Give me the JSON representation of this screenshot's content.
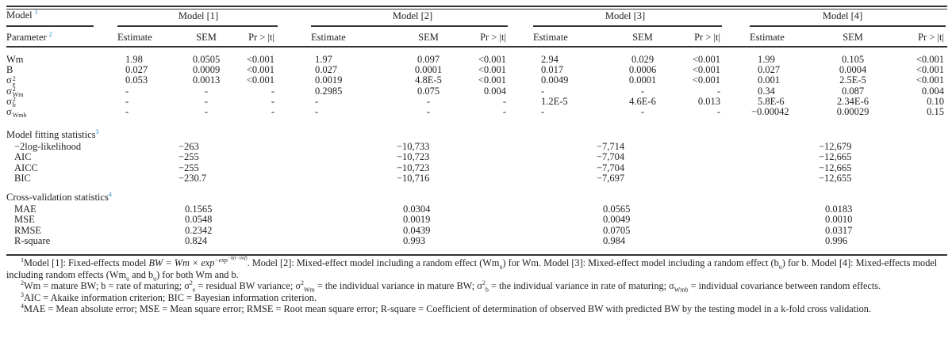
{
  "header": {
    "model_label": "Model",
    "model_ref": "1",
    "parameter_label": "Parameter",
    "parameter_ref": "2",
    "models": [
      "Model [1]",
      "Model [2]",
      "Model [3]",
      "Model [4]"
    ],
    "subcols": [
      "Estimate",
      "SEM",
      "Pr > |t|"
    ]
  },
  "parameters": [
    {
      "name": "Wm",
      "sup": "",
      "sub": "",
      "values": [
        [
          "1.98",
          "0.0505",
          "<0.001"
        ],
        [
          "1.97",
          "0.097",
          "<0.001"
        ],
        [
          "2.94",
          "0.029",
          "<0.001"
        ],
        [
          "1.99",
          "0.105",
          "<0.001"
        ]
      ]
    },
    {
      "name": "B",
      "sup": "",
      "sub": "",
      "values": [
        [
          "0.027",
          "0.0009",
          "<0.001"
        ],
        [
          "0.027",
          "0.0001",
          "<0.001"
        ],
        [
          "0.017",
          "0.0006",
          "<0.001"
        ],
        [
          "0.027",
          "0.0004",
          "<0.001"
        ]
      ]
    },
    {
      "name": "σ",
      "sup": "2",
      "sub": "e",
      "values": [
        [
          "0.053",
          "0.0013",
          "<0.001"
        ],
        [
          "0.0019",
          "4.8E-5",
          "<0.001"
        ],
        [
          "0.0049",
          "0.0001",
          "<0.001"
        ],
        [
          "0.001",
          "2.5E-5",
          "<0.001"
        ]
      ]
    },
    {
      "name": "σ",
      "sup": "2",
      "sub": "Wm",
      "values": [
        [
          "-",
          "-",
          "-"
        ],
        [
          "0.2985",
          "0.075",
          "0.004"
        ],
        [
          "-",
          "-",
          "-"
        ],
        [
          "0.34",
          "0.087",
          "0.004"
        ]
      ]
    },
    {
      "name": "σ",
      "sup": "2",
      "sub": "b",
      "values": [
        [
          "-",
          "-",
          "-"
        ],
        [
          "-",
          "-",
          "-"
        ],
        [
          "1.2E-5",
          "4.6E-6",
          "0.013"
        ],
        [
          "5.8E-6",
          "2.34E-6",
          "0.10"
        ]
      ]
    },
    {
      "name": "σ",
      "sup": "",
      "sub": "Wmb",
      "values": [
        [
          "-",
          "-",
          "-"
        ],
        [
          "-",
          "-",
          "-"
        ],
        [
          "-",
          "-",
          "-"
        ],
        [
          "−0.00042",
          "0.00029",
          "0.15"
        ]
      ]
    }
  ],
  "fitting": {
    "title": "Model fitting statistics",
    "ref": "3",
    "rows": [
      {
        "name": "−2log-likelihood",
        "values": [
          "−263",
          "−10,733",
          "−7,714",
          "−12,679"
        ]
      },
      {
        "name": "AIC",
        "values": [
          "−255",
          "−10,723",
          "−7,704",
          "−12,665"
        ]
      },
      {
        "name": "AICC",
        "values": [
          "−255",
          "−10,723",
          "−7,704",
          "−12,665"
        ]
      },
      {
        "name": "BIC",
        "values": [
          "−230.7",
          "−10,716",
          "−7,697",
          "−12,655"
        ]
      }
    ]
  },
  "crossval": {
    "title": "Cross-validation statistics",
    "ref": "4",
    "rows": [
      {
        "name": "MAE",
        "values": [
          "0.1565",
          "0.0304",
          "0.0565",
          "0.0183"
        ]
      },
      {
        "name": "MSE",
        "values": [
          "0.0548",
          "0.0019",
          "0.0049",
          "0.0010"
        ]
      },
      {
        "name": "RMSE",
        "values": [
          "0.2342",
          "0.0439",
          "0.0705",
          "0.0317"
        ]
      },
      {
        "name": "R-square",
        "values": [
          "0.824",
          "0.993",
          "0.984",
          "0.996"
        ]
      }
    ]
  },
  "footnotes": {
    "f1_a": "Model [1]: Fixed-effects model ",
    "f1_formula": "BW = Wm × exp",
    "f1_exp1": "−exp",
    "f1_exp2": "−b(t−t",
    "f1_exp3": "inf",
    "f1_b": ". Model [2]: Mixed-effect model including a random effect (Wm",
    "f1_c": ") for Wm. Model [3]: Mixed-effect model including a random effect (b",
    "f1_d": ") for b. Model [4]: Mixed-effects model including random effects (Wm",
    "f1_e": " and b",
    "f1_f": ") for both Wm and b.",
    "u": "u",
    "f2_a": "Wm = mature BW; b = rate of maturing; σ",
    "f2_b": " = residual BW variance; σ",
    "f2_c": " = the individual variance in mature BW; σ",
    "f2_d": " = the individual variance in rate of maturing; σ",
    "f2_e": " = individual covariance between random effects.",
    "f3": "AIC = Akaike information criterion; BIC = Bayesian information criterion.",
    "f4": "MAE = Mean absolute error; MSE = Mean square error; RMSE = Root mean square error; R-square = Coefficient of determination of observed BW with predicted BW by the testing model in a k-fold cross validation."
  }
}
